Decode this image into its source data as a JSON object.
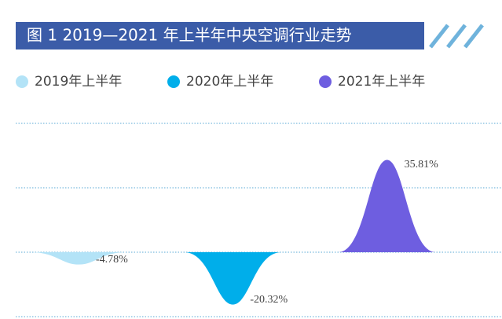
{
  "chart_data": {
    "type": "peak",
    "title": "图 1 2019—2021 年上半年中央空调行业走势",
    "series": [
      {
        "name": "2019年上半年",
        "color": "#b3e3f7",
        "values": [
          -4.78
        ],
        "value_labels": [
          "-4.78%"
        ]
      },
      {
        "name": "2020年上半年",
        "color": "#00aeea",
        "values": [
          -20.32
        ],
        "value_labels": [
          "-20.32%"
        ]
      },
      {
        "name": "2021年上半年",
        "color": "#6e5ee0",
        "values": [
          35.81
        ],
        "value_labels": [
          "35.81%"
        ]
      }
    ],
    "ylim": [
      -25,
      50
    ],
    "yticks": [
      -25,
      0,
      25,
      50
    ],
    "grid": true
  }
}
